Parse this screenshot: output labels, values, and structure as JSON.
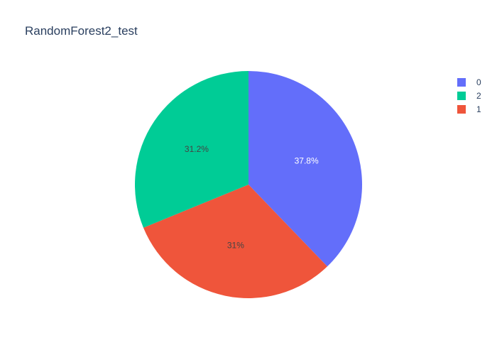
{
  "chart_data": {
    "type": "pie",
    "title": "RandomForest2_test",
    "slices": [
      {
        "label": "0",
        "percent": 37.8,
        "percent_label": "37.8%",
        "color": "#636efa",
        "text_color": "#ffffff"
      },
      {
        "label": "1",
        "percent": 31.0,
        "percent_label": "31%",
        "color": "#ef553b",
        "text_color": "#444444"
      },
      {
        "label": "2",
        "percent": 31.2,
        "percent_label": "31.2%",
        "color": "#00cc96",
        "text_color": "#444444"
      }
    ],
    "legend": {
      "placement": "top-right",
      "items": [
        {
          "label": "0",
          "color": "#636efa"
        },
        {
          "label": "2",
          "color": "#00cc96"
        },
        {
          "label": "1",
          "color": "#ef553b"
        }
      ]
    }
  }
}
